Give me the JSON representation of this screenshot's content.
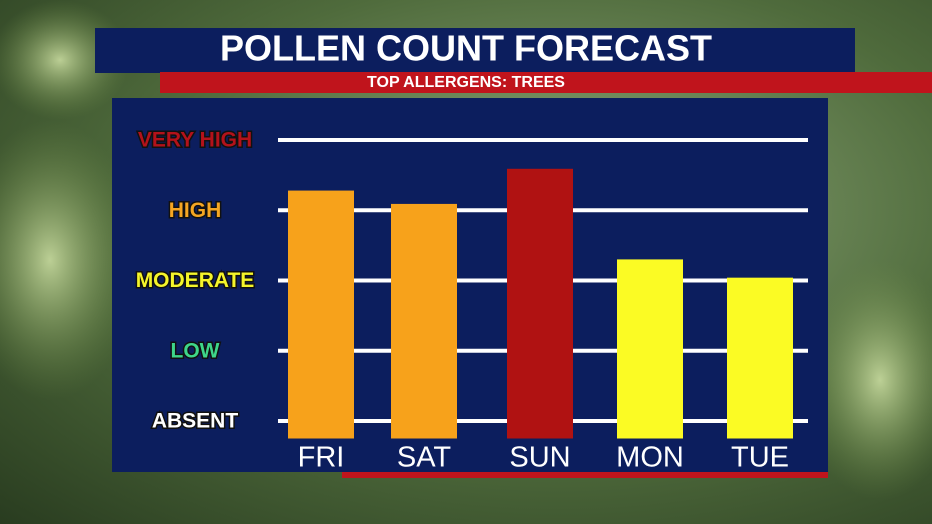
{
  "chart_data": {
    "type": "bar",
    "title": "POLLEN COUNT FORECAST",
    "subtitle": "TOP ALLERGENS: TREES",
    "categories": [
      "FRI",
      "SAT",
      "SUN",
      "MON",
      "TUE"
    ],
    "values": [
      3.28,
      3.09,
      3.59,
      2.3,
      2.04
    ],
    "colors": [
      "#f7a21b",
      "#f7a21b",
      "#b01212",
      "#fbfb24",
      "#fbfb24"
    ],
    "ylim": [
      -0.25,
      4
    ],
    "yticks": [
      {
        "value": 0,
        "label": "ABSENT"
      },
      {
        "value": 1,
        "label": "LOW"
      },
      {
        "value": 2,
        "label": "MODERATE"
      },
      {
        "value": 3,
        "label": "HIGH"
      },
      {
        "value": 4,
        "label": "VERY HIGH"
      }
    ],
    "ytick_colors": [
      "#ffffff",
      "#3ed68a",
      "#f5f52a",
      "#f5a623",
      "#b3121a"
    ],
    "grid": true
  }
}
